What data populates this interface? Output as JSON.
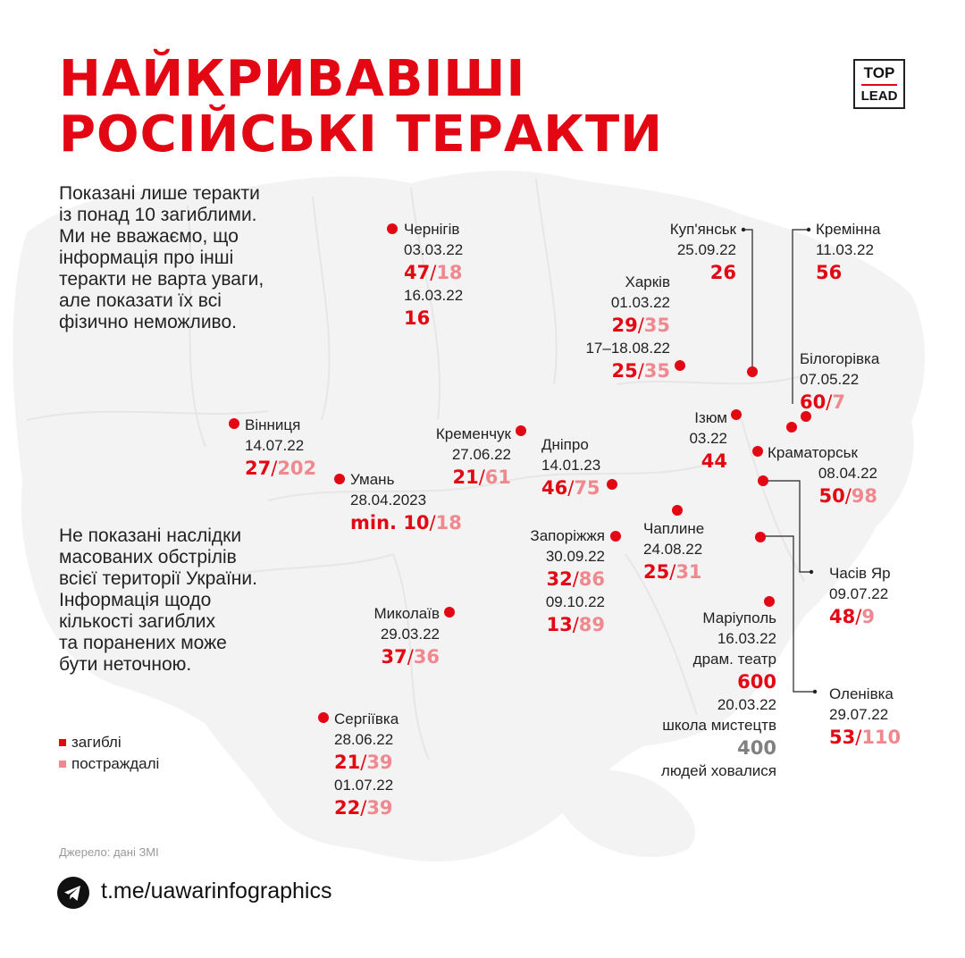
{
  "title": [
    "НАЙКРИВАВІШІ",
    "РОСІЙСЬКІ ТЕРАКТИ"
  ],
  "logo": {
    "top": "TOP",
    "bottom": "LEAD"
  },
  "note_top": [
    "Показані лише теракти",
    "із понад 10 загиблими.",
    "Ми не вважаємо, що",
    "інформація про інші",
    "теракти не варта уваги,",
    "але показати їх всі",
    "фізично неможливо."
  ],
  "note_bottom": [
    "Не показані наслідки",
    "масованих обстрілів",
    "всієї території України.",
    "Інформація щодо",
    "кількості загиблих",
    "та поранених може",
    "бути неточною."
  ],
  "colors": {
    "killed": "#e30613",
    "injured": "#f0898f",
    "sheltered": "#808080",
    "map": "#f2f2f2"
  },
  "cities": {
    "chernihiv": {
      "name": "Чернігів",
      "events": [
        {
          "date": "03.03.22",
          "killed": "47",
          "injured": "18"
        },
        {
          "date": "16.03.22",
          "killed": "16"
        }
      ]
    },
    "kupiansk": {
      "name": "Куп'янськ",
      "events": [
        {
          "date": "25.09.22",
          "killed": "26"
        }
      ]
    },
    "kreminna": {
      "name": "Кремінна",
      "events": [
        {
          "date": "11.03.22",
          "killed": "56"
        }
      ]
    },
    "kharkiv": {
      "name": "Харків",
      "events": [
        {
          "date": "01.03.22",
          "killed": "29",
          "injured": "35"
        },
        {
          "date": "17–18.08.22",
          "killed": "25",
          "injured": "35"
        }
      ]
    },
    "bilohorivka": {
      "name": "Білогорівка",
      "events": [
        {
          "date": "07.05.22",
          "killed": "60",
          "injured": "7"
        }
      ]
    },
    "vinnytsia": {
      "name": "Вінниця",
      "events": [
        {
          "date": "14.07.22",
          "killed": "27",
          "injured": "202"
        }
      ]
    },
    "kremenchuk": {
      "name": "Кременчук",
      "events": [
        {
          "date": "27.06.22",
          "killed": "21",
          "injured": "61"
        }
      ]
    },
    "dnipro": {
      "name": "Дніпро",
      "events": [
        {
          "date": "14.01.23",
          "killed": "46",
          "injured": "75"
        }
      ]
    },
    "izium": {
      "name": "Ізюм",
      "events": [
        {
          "date": "03.22",
          "killed": "44"
        }
      ]
    },
    "kramatorsk": {
      "name": "Краматорськ",
      "events": [
        {
          "date": "08.04.22",
          "killed": "50",
          "injured": "98"
        }
      ]
    },
    "uman": {
      "name": "Умань",
      "events": [
        {
          "date": "28.04.2023",
          "killed": "min. 10",
          "injured": "18"
        }
      ]
    },
    "zaporizhzhia": {
      "name": "Запоріжжя",
      "events": [
        {
          "date": "30.09.22",
          "killed": "32",
          "injured": "86"
        },
        {
          "date": "09.10.22",
          "killed": "13",
          "injured": "89"
        }
      ]
    },
    "chapline": {
      "name": "Чаплине",
      "events": [
        {
          "date": "24.08.22",
          "killed": "25",
          "injured": "31"
        }
      ]
    },
    "chasiv_yar": {
      "name": "Часів Яр",
      "events": [
        {
          "date": "09.07.22",
          "killed": "48",
          "injured": "9"
        }
      ]
    },
    "mykolaiv": {
      "name": "Миколаїв",
      "events": [
        {
          "date": "29.03.22",
          "killed": "37",
          "injured": "36"
        }
      ]
    },
    "mariupol": {
      "name": "Маріуполь",
      "events": [
        {
          "date": "16.03.22",
          "place": "драм. театр",
          "killed": "600"
        },
        {
          "date": "20.03.22",
          "place": "школа мистецтв",
          "sheltered": "400",
          "note": "людей ховалися"
        }
      ]
    },
    "olenivka": {
      "name": "Оленівка",
      "events": [
        {
          "date": "29.07.22",
          "killed": "53",
          "injured": "110"
        }
      ]
    },
    "serhiivka": {
      "name": "Сергіївка",
      "events": [
        {
          "date": "28.06.22",
          "killed": "21",
          "injured": "39"
        },
        {
          "date": "01.07.22",
          "killed": "22",
          "injured": "39"
        }
      ]
    }
  },
  "legend": {
    "killed": "загиблі",
    "injured": "постраждалі"
  },
  "source": "Джерело: дані ЗМІ",
  "telegram": {
    "link": "t.me/uawarinfographics",
    "icon": "telegram-icon"
  }
}
